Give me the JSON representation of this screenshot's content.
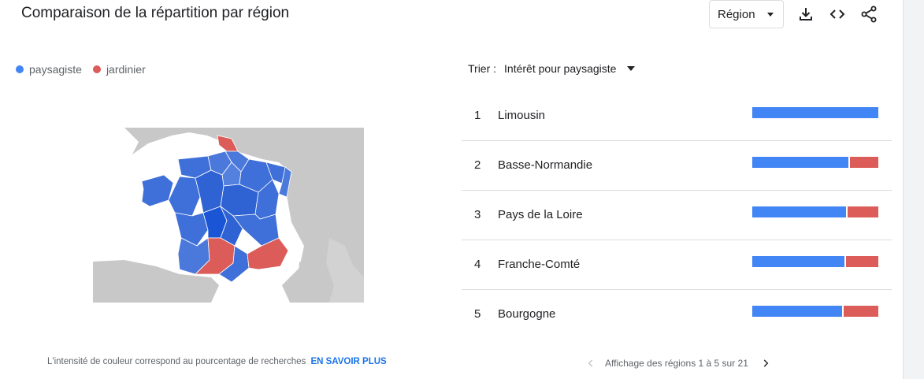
{
  "header": {
    "title": "Comparaison de la répartition par région",
    "resolution_select": {
      "value": "Région"
    },
    "icons": [
      "download-icon",
      "embed-code-icon",
      "share-icon"
    ]
  },
  "legend": [
    {
      "label": "paysagiste",
      "color": "#4285f4"
    },
    {
      "label": "jardinier",
      "color": "#db5c58"
    }
  ],
  "map": {
    "region": "France",
    "colors": {
      "term_a": "#3f6fd8",
      "term_a_strong": "#1a55d6",
      "term_b": "#db5c58",
      "neighbour": "#c8c8c8"
    }
  },
  "footer": {
    "note": "L'intensité de couleur correspond au pourcentage de recherches",
    "link": "EN SAVOIR PLUS"
  },
  "sort": {
    "label": "Trier :",
    "value": "Intérêt pour paysagiste"
  },
  "rows": [
    {
      "rank": "1",
      "name": "Limousin",
      "share_a": 1.0,
      "share_b": 0.0
    },
    {
      "rank": "2",
      "name": "Basse-Normandie",
      "share_a": 0.77,
      "share_b": 0.23
    },
    {
      "rank": "3",
      "name": "Pays de la Loire",
      "share_a": 0.75,
      "share_b": 0.25
    },
    {
      "rank": "4",
      "name": "Franche-Comté",
      "share_a": 0.74,
      "share_b": 0.26
    },
    {
      "rank": "5",
      "name": "Bourgogne",
      "share_a": 0.72,
      "share_b": 0.28
    }
  ],
  "pager": {
    "text": "Affichage des régions 1 à 5 sur 21"
  }
}
